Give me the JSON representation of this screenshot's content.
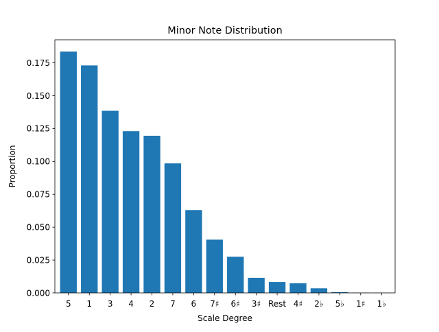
{
  "chart_data": {
    "type": "bar",
    "title": "Minor Note Distribution",
    "xlabel": "Scale Degree",
    "ylabel": "Proportion",
    "categories": [
      "5",
      "1",
      "3",
      "4",
      "2",
      "7",
      "6",
      "7♯",
      "6♯",
      "3♯",
      "Rest",
      "4♯",
      "2♭",
      "5♭",
      "1♯",
      "1♭"
    ],
    "values": [
      0.1835,
      0.173,
      0.1385,
      0.123,
      0.1195,
      0.0985,
      0.063,
      0.0405,
      0.0275,
      0.0115,
      0.0083,
      0.0073,
      0.0035,
      0.0006,
      0.0002,
      0.0001
    ],
    "ylim": [
      0,
      0.1925
    ],
    "yticks": [
      0.0,
      0.025,
      0.05,
      0.075,
      0.1,
      0.125,
      0.15,
      0.175
    ],
    "ytick_labels": [
      "0.000",
      "0.025",
      "0.050",
      "0.075",
      "0.100",
      "0.125",
      "0.150",
      "0.175"
    ],
    "grid": false,
    "bar_color": "#1f77b4"
  }
}
